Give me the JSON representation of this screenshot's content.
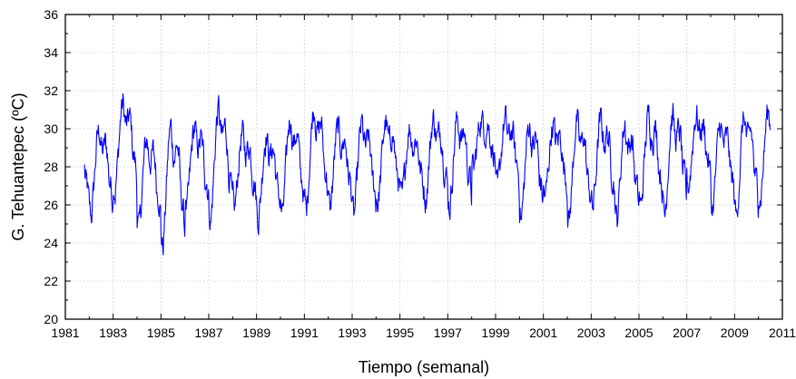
{
  "chart_data": {
    "type": "line",
    "title": "",
    "xlabel": "Tiempo (semanal)",
    "ylabel": "G. Tehuantepec (ºC)",
    "xlim": [
      1981,
      2011
    ],
    "ylim": [
      20,
      36
    ],
    "xticks": [
      1981,
      1983,
      1985,
      1987,
      1989,
      1991,
      1993,
      1995,
      1997,
      1999,
      2001,
      2003,
      2005,
      2007,
      2009,
      2011
    ],
    "xtick_labels": [
      "1981",
      "1983",
      "1985",
      "1987",
      "1989",
      "1991",
      "1993",
      "1995",
      "1997",
      "1999",
      "2001",
      "2003",
      "2005",
      "2007",
      "2009",
      "2011"
    ],
    "yticks": [
      20,
      22,
      24,
      26,
      28,
      30,
      32,
      34,
      36
    ],
    "ytick_labels": [
      "20",
      "22",
      "24",
      "26",
      "28",
      "30",
      "32",
      "34",
      "36"
    ],
    "grid": true,
    "line_color": "#0000ff",
    "series": [
      {
        "x_start": 1981.8,
        "x_step_weeks": 1,
        "annual_pattern": {
          "feb": 25.8,
          "mar": 26.9,
          "apr": 28.3,
          "may": 29.6,
          "jun": 30.0,
          "jul": 29.1,
          "aug": 28.9,
          "sep": 29.4,
          "oct": 29.0,
          "nov": 27.6,
          "dec": 27.3,
          "jan": 26.4
        },
        "yearly_extremes": [
          {
            "year": 1982,
            "min": 25.3,
            "max": 30.0
          },
          {
            "year": 1983,
            "min": 26.6,
            "max": 31.4
          },
          {
            "year": 1984,
            "min": 24.7,
            "max": 29.5
          },
          {
            "year": 1985,
            "min": 23.6,
            "max": 30.2
          },
          {
            "year": 1986,
            "min": 25.7,
            "max": 30.1
          },
          {
            "year": 1987,
            "min": 25.0,
            "max": 31.1
          },
          {
            "year": 1988,
            "min": 25.7,
            "max": 29.8
          },
          {
            "year": 1989,
            "min": 25.2,
            "max": 29.7
          },
          {
            "year": 1990,
            "min": 25.3,
            "max": 30.6
          },
          {
            "year": 1991,
            "min": 25.6,
            "max": 31.2
          },
          {
            "year": 1992,
            "min": 25.7,
            "max": 30.1
          },
          {
            "year": 1993,
            "min": 25.3,
            "max": 30.3
          },
          {
            "year": 1994,
            "min": 26.0,
            "max": 30.4
          },
          {
            "year": 1995,
            "min": 26.2,
            "max": 30.1
          },
          {
            "year": 1996,
            "min": 26.2,
            "max": 30.6
          },
          {
            "year": 1997,
            "min": 25.8,
            "max": 30.6
          },
          {
            "year": 1998,
            "min": 27.8,
            "max": 30.6
          },
          {
            "year": 1999,
            "min": 26.7,
            "max": 30.5
          },
          {
            "year": 2000,
            "min": 25.2,
            "max": 30.3
          },
          {
            "year": 2001,
            "min": 26.3,
            "max": 30.3
          },
          {
            "year": 2002,
            "min": 25.1,
            "max": 30.5
          },
          {
            "year": 2003,
            "min": 25.8,
            "max": 30.5
          },
          {
            "year": 2004,
            "min": 25.1,
            "max": 30.3
          },
          {
            "year": 2005,
            "min": 25.8,
            "max": 30.8
          },
          {
            "year": 2006,
            "min": 25.4,
            "max": 30.8
          },
          {
            "year": 2007,
            "min": 26.9,
            "max": 30.8
          },
          {
            "year": 2008,
            "min": 25.7,
            "max": 30.3
          },
          {
            "year": 2009,
            "min": 25.3,
            "max": 30.7
          },
          {
            "year": 2010,
            "min": 26.2,
            "max": 31.0
          }
        ],
        "x_end": 2010.5
      }
    ]
  }
}
